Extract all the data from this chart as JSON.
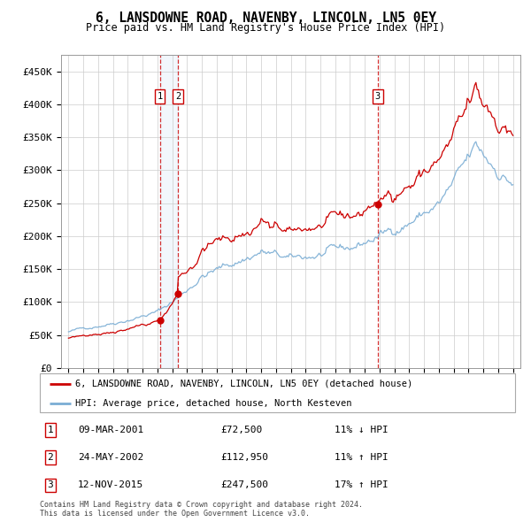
{
  "title": "6, LANSDOWNE ROAD, NAVENBY, LINCOLN, LN5 0EY",
  "subtitle": "Price paid vs. HM Land Registry's House Price Index (HPI)",
  "legend_line1": "6, LANSDOWNE ROAD, NAVENBY, LINCOLN, LN5 0EY (detached house)",
  "legend_line2": "HPI: Average price, detached house, North Kesteven",
  "footer1": "Contains HM Land Registry data © Crown copyright and database right 2024.",
  "footer2": "This data is licensed under the Open Government Licence v3.0.",
  "transactions": [
    {
      "num": 1,
      "date": "09-MAR-2001",
      "price": 72500,
      "pct": "11%",
      "dir": "↓",
      "year": 2001.17
    },
    {
      "num": 2,
      "date": "24-MAY-2002",
      "price": 112950,
      "pct": "11%",
      "dir": "↑",
      "year": 2002.39
    },
    {
      "num": 3,
      "date": "12-NOV-2015",
      "price": 247500,
      "pct": "17%",
      "dir": "↑",
      "year": 2015.87
    }
  ],
  "hpi_color": "#7aadd4",
  "price_color": "#cc0000",
  "vline_color": "#cc0000",
  "shade_color": "#ddeeff",
  "grid_color": "#cccccc",
  "ylim": [
    0,
    475000
  ],
  "yticks": [
    0,
    50000,
    100000,
    150000,
    200000,
    250000,
    300000,
    350000,
    400000,
    450000
  ],
  "xlim_start": 1994.5,
  "xlim_end": 2025.5
}
